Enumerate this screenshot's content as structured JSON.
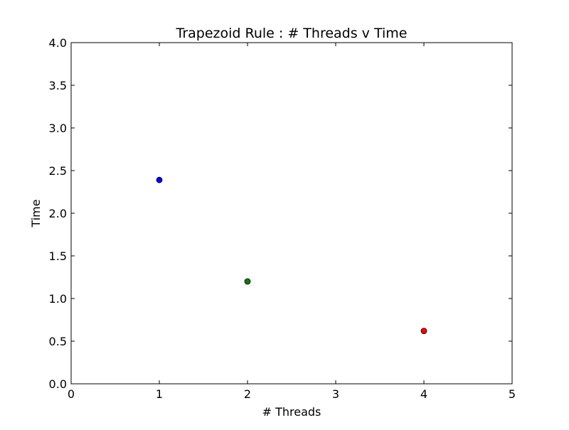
{
  "chart_data": {
    "type": "scatter",
    "title": "Trapezoid Rule : # Threads v Time",
    "xlabel": "# Threads",
    "ylabel": "Time",
    "xlim": [
      0,
      5
    ],
    "ylim": [
      0,
      4.0
    ],
    "xticks": [
      "0",
      "1",
      "2",
      "3",
      "4",
      "5"
    ],
    "yticks": [
      "0.0",
      "0.5",
      "1.0",
      "1.5",
      "2.0",
      "2.5",
      "3.0",
      "3.5",
      "4.0"
    ],
    "grid": false,
    "legend": "none",
    "points": [
      {
        "x": 1,
        "y": 2.39,
        "color": "#0000ff"
      },
      {
        "x": 2,
        "y": 1.2,
        "color": "#008000"
      },
      {
        "x": 4,
        "y": 0.62,
        "color": "#ff0000"
      }
    ]
  }
}
